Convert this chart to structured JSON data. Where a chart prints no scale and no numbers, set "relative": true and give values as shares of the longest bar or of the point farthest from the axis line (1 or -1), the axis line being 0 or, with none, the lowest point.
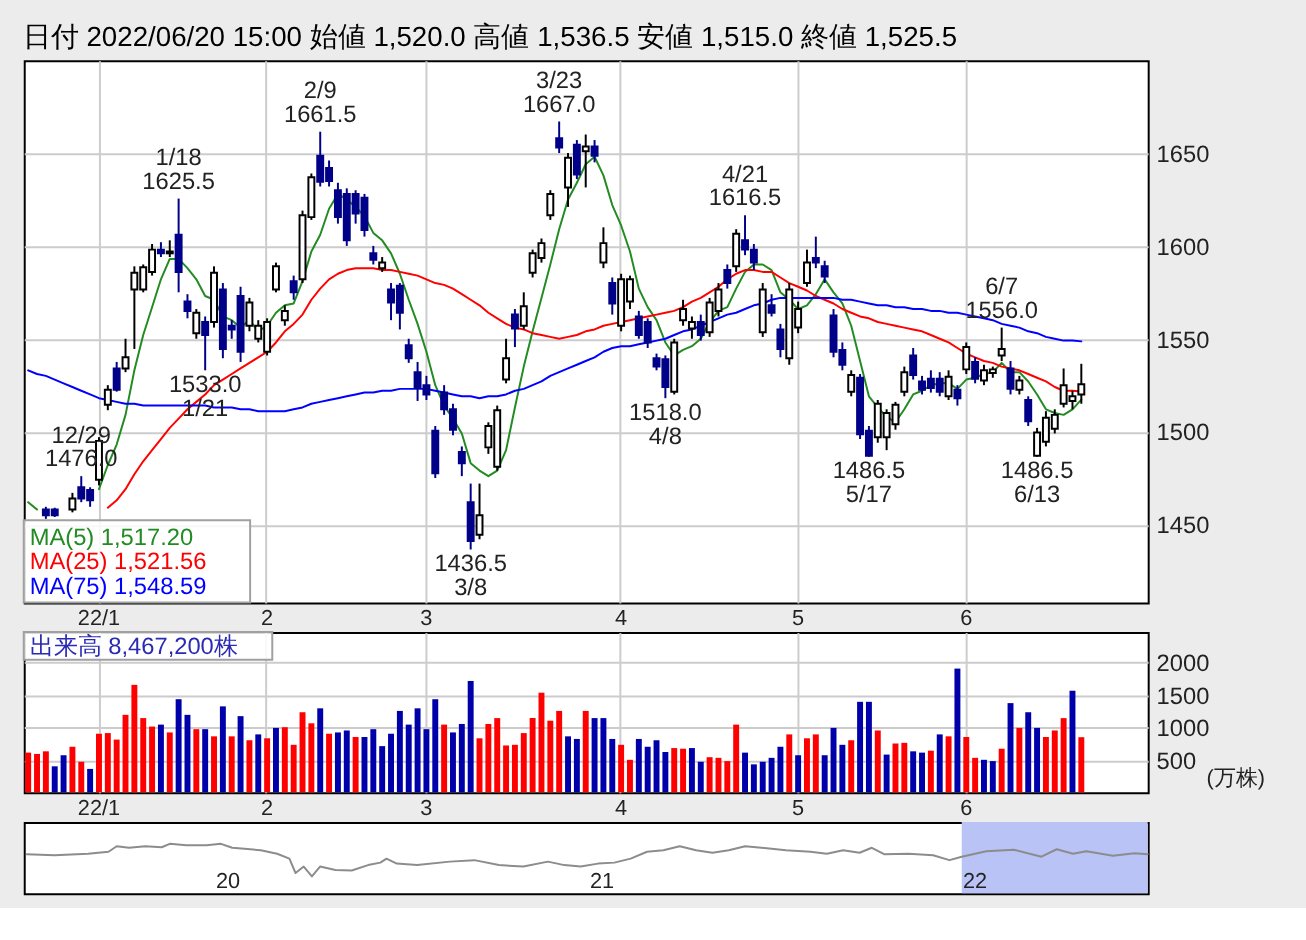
{
  "chart_data": [
    {
      "type": "candlestick",
      "title": "日付 2022/06/20 15:00 始値 1,520.0 高値 1,536.5 安値 1,515.0 終値 1,525.5",
      "categories": [
        null,
        null,
        null,
        null,
        null,
        null,
        null,
        null,
        "22/1",
        null,
        null,
        null,
        null,
        null,
        null,
        null,
        null,
        null,
        null,
        null,
        null,
        null,
        null,
        null,
        null,
        null,
        null,
        "2",
        null,
        null,
        null,
        null,
        null,
        null,
        null,
        null,
        null,
        null,
        null,
        null,
        null,
        null,
        null,
        null,
        null,
        "3",
        null,
        null,
        null,
        null,
        null,
        null,
        null,
        null,
        null,
        null,
        null,
        null,
        null,
        null,
        null,
        null,
        null,
        null,
        null,
        null,
        null,
        "4",
        null,
        null,
        null,
        null,
        null,
        null,
        null,
        null,
        null,
        null,
        null,
        null,
        null,
        null,
        null,
        null,
        null,
        null,
        null,
        "5",
        null,
        null,
        null,
        null,
        null,
        null,
        null,
        null,
        null,
        null,
        null,
        null,
        null,
        null,
        null,
        null,
        null,
        null,
        "6",
        null,
        null,
        null,
        null,
        null,
        null,
        null,
        null,
        null,
        null,
        null,
        null,
        null,
        null,
        null,
        null,
        null,
        null,
        null,
        null
      ],
      "ohlc": [
        null,
        null,
        [
          1458,
          1459.5,
          1453,
          1455
        ],
        [
          1458,
          1459,
          1454,
          1455
        ],
        null,
        [
          1458,
          1467,
          1456.5,
          1464
        ],
        [
          1470,
          1476,
          1462,
          1464
        ],
        [
          1468.5,
          1470,
          1459.5,
          1463
        ],
        [
          1474,
          1497,
          1471,
          1495
        ],
        [
          1514.5,
          1525,
          1511.5,
          1522.5
        ],
        [
          1534,
          1537.5,
          1521.5,
          1522.5
        ],
        [
          1534,
          1550,
          1532,
          1540
        ],
        [
          1576.5,
          1589,
          1544.5,
          1585.5
        ],
        [
          1576.5,
          1590,
          1575,
          1588.5
        ],
        [
          1586,
          1601,
          1584,
          1598
        ],
        [
          1598,
          1602,
          1594,
          1596
        ],
        [
          1596,
          1603,
          1594,
          1597
        ],
        [
          1606,
          1625.5,
          1575,
          1586
        ],
        [
          1570,
          1574,
          1561,
          1565
        ],
        [
          1553,
          1566,
          1550,
          1564
        ],
        [
          1559,
          1562,
          1533,
          1552
        ],
        [
          1559,
          1589,
          1556,
          1585.5
        ],
        [
          1576.5,
          1580,
          1539.5,
          1544.5
        ],
        [
          1557,
          1560,
          1550,
          1555
        ],
        [
          1573,
          1578,
          1537.5,
          1543
        ],
        [
          1557,
          1572,
          1554,
          1569.5
        ],
        [
          1550,
          1560,
          1548,
          1557
        ],
        [
          1543,
          1561,
          1541,
          1559
        ],
        [
          1576.5,
          1591,
          1575,
          1589
        ],
        [
          1560,
          1568,
          1557,
          1565
        ],
        [
          1581,
          1584,
          1571,
          1575
        ],
        [
          1582,
          1619,
          1580,
          1616.5
        ],
        [
          1615.5,
          1639,
          1614,
          1637
        ],
        [
          1648.5,
          1661.5,
          1632,
          1634.5
        ],
        [
          1642,
          1646,
          1632,
          1635
        ],
        [
          1630,
          1634,
          1612,
          1615.5
        ],
        [
          1628,
          1631,
          1600,
          1603
        ],
        [
          1628,
          1630,
          1612,
          1617.5
        ],
        [
          1626,
          1628,
          1605,
          1608.5
        ],
        [
          1596,
          1600,
          1590,
          1592.5
        ],
        [
          1588,
          1594,
          1586,
          1591
        ],
        [
          1576.5,
          1580,
          1560,
          1569.5
        ],
        [
          1578.5,
          1580,
          1555,
          1564
        ],
        [
          1546.5,
          1550,
          1537,
          1539.5
        ],
        [
          1532,
          1537.5,
          1516.5,
          1523.5
        ],
        [
          1525,
          1530,
          1517,
          1520
        ],
        [
          1500.5,
          1503,
          1475,
          1477.5
        ],
        [
          1521,
          1525,
          1509,
          1512
        ],
        [
          1512,
          1515,
          1498,
          1501
        ],
        [
          1489,
          1492,
          1476,
          1483
        ],
        [
          1462,
          1472,
          1436.5,
          1441
        ],
        [
          1444.5,
          1472,
          1442,
          1455
        ],
        [
          1491.5,
          1505,
          1488,
          1503
        ],
        [
          1481,
          1514,
          1479,
          1511.5
        ],
        [
          1528,
          1550,
          1526,
          1539.5
        ],
        [
          1563,
          1566,
          1545.5,
          1555.5
        ],
        [
          1557,
          1575,
          1555,
          1567.5
        ],
        [
          1585.5,
          1598,
          1583,
          1596
        ],
        [
          1593.5,
          1604,
          1591,
          1601.5
        ],
        [
          1616.5,
          1630,
          1614,
          1628
        ],
        [
          1658,
          1667,
          1650,
          1653
        ],
        [
          1631.5,
          1650,
          1621,
          1647.5
        ],
        [
          1654.5,
          1657,
          1636,
          1638.5
        ],
        [
          1651,
          1660,
          1631.5,
          1653.5
        ],
        [
          1653.5,
          1657,
          1645,
          1648.5
        ],
        [
          1591,
          1610,
          1588,
          1601.5
        ],
        [
          1580,
          1583,
          1563,
          1569
        ],
        [
          1557,
          1585,
          1554,
          1582
        ],
        [
          1570,
          1584,
          1566,
          1582
        ],
        [
          1562,
          1565,
          1550,
          1552
        ],
        [
          1559,
          1561,
          1545,
          1548
        ],
        [
          1539.5,
          1542,
          1533,
          1535
        ],
        [
          1539,
          1541,
          1518,
          1524
        ],
        [
          1521.5,
          1550,
          1520,
          1548
        ],
        [
          1560,
          1571,
          1557,
          1566
        ],
        [
          1555.5,
          1562,
          1550,
          1559
        ],
        [
          1559,
          1563,
          1549,
          1552
        ],
        [
          1553.5,
          1572,
          1551,
          1569.5
        ],
        [
          1565,
          1580,
          1562,
          1576.5
        ],
        [
          1587,
          1590,
          1577,
          1580
        ],
        [
          1589,
          1609,
          1586,
          1606.5
        ],
        [
          1603,
          1616.5,
          1595,
          1598
        ],
        [
          1598,
          1601,
          1587,
          1591
        ],
        [
          1553.5,
          1580,
          1551,
          1576.5
        ],
        [
          1568,
          1574,
          1562,
          1564
        ],
        [
          1555,
          1558,
          1540,
          1544.5
        ],
        [
          1539.5,
          1580,
          1536,
          1576.5
        ],
        [
          1556,
          1570,
          1553,
          1566
        ],
        [
          1580,
          1598,
          1578,
          1591
        ],
        [
          1593.5,
          1605,
          1588,
          1591
        ],
        [
          1589,
          1592,
          1580,
          1583.5
        ],
        [
          1562.5,
          1566,
          1540,
          1543
        ],
        [
          1544,
          1548,
          1533,
          1536
        ],
        [
          1521.5,
          1533,
          1519,
          1530.5
        ],
        [
          1529,
          1531,
          1496,
          1498.5
        ],
        [
          1500.5,
          1503,
          1486.5,
          1487
        ],
        [
          1497,
          1517,
          1494,
          1515
        ],
        [
          1497,
          1512,
          1490,
          1510
        ],
        [
          1504,
          1516,
          1501,
          1514.5
        ],
        [
          1521.5,
          1535,
          1519,
          1532
        ],
        [
          1541,
          1545,
          1528,
          1530.5
        ],
        [
          1527,
          1530,
          1520,
          1522.5
        ],
        [
          1528.5,
          1533,
          1521,
          1523.5
        ],
        [
          1528.5,
          1532,
          1519,
          1521.5
        ],
        [
          1519,
          1533,
          1517,
          1529.5
        ],
        [
          1522.5,
          1525,
          1514,
          1518
        ],
        [
          1533.5,
          1548,
          1531,
          1545.5
        ],
        [
          1537.5,
          1540,
          1526,
          1528.5
        ],
        [
          1527.5,
          1536,
          1525,
          1533
        ],
        [
          1531.5,
          1535,
          1529,
          1533.5
        ],
        [
          1541,
          1556,
          1538,
          1544.5
        ],
        [
          1534,
          1538,
          1520,
          1523
        ],
        [
          1522.5,
          1530,
          1520,
          1527.5
        ],
        [
          1517,
          1519,
          1503,
          1505.5
        ],
        [
          1487,
          1502,
          1486.5,
          1499.5
        ],
        [
          1494.5,
          1511,
          1492,
          1507.5
        ],
        [
          1501.5,
          1512,
          1499,
          1509
        ],
        [
          1515,
          1534,
          1513,
          1525
        ],
        [
          1516.5,
          1522,
          1512,
          1519
        ],
        [
          1520.0,
          1536.5,
          1515.0,
          1525.5
        ],
        null,
        null,
        null,
        null,
        null,
        null,
        null
      ],
      "colors": [
        null,
        null,
        "#000088",
        "#000088",
        null,
        "#ffffff",
        "#000088",
        "#000088",
        "#ffffff",
        "#ffffff",
        "#000088",
        "#ffffff",
        "#ffffff",
        "#ffffff",
        "#ffffff",
        "#000088",
        "#ffffff",
        "#000088",
        "#000088",
        "#ffffff",
        "#000088",
        "#ffffff",
        "#000088",
        "#000088",
        "#000088",
        "#ffffff",
        "#ffffff",
        "#ffffff",
        "#ffffff",
        "#ffffff",
        "#000088",
        "#ffffff",
        "#ffffff",
        "#000088",
        "#000088",
        "#000088",
        "#000088",
        "#000088",
        "#000088",
        "#000088",
        "#ffffff",
        "#000088",
        "#000088",
        "#000088",
        "#000088",
        "#000088",
        "#000088",
        "#000088",
        "#000088",
        "#000088",
        "#000088",
        "#ffffff",
        "#ffffff",
        "#ffffff",
        "#ffffff",
        "#000088",
        "#ffffff",
        "#ffffff",
        "#ffffff",
        "#ffffff",
        "#000088",
        "#ffffff",
        "#000088",
        "#ffffff",
        "#000088",
        "#ffffff",
        "#000088",
        "#ffffff",
        "#ffffff",
        "#000088",
        "#000088",
        "#000088",
        "#000088",
        "#ffffff",
        "#ffffff",
        "#ffffff",
        "#000088",
        "#ffffff",
        "#ffffff",
        "#000088",
        "#ffffff",
        "#000088",
        "#000088",
        "#ffffff",
        "#000088",
        "#000088",
        "#ffffff",
        "#ffffff",
        "#ffffff",
        "#000088",
        "#000088",
        "#000088",
        "#000088",
        "#ffffff",
        "#000088",
        "#000088",
        "#ffffff",
        "#ffffff",
        "#ffffff",
        "#ffffff",
        "#000088",
        "#000088",
        "#000088",
        "#000088",
        "#ffffff",
        "#000088",
        "#ffffff",
        "#000088",
        "#ffffff",
        "#ffffff",
        "#ffffff",
        "#000088",
        "#ffffff",
        "#000088",
        "#ffffff",
        "#ffffff",
        "#ffffff",
        "#ffffff",
        "#ffffff",
        "#ffffff",
        null,
        null,
        null,
        null,
        null,
        null,
        null
      ],
      "series": [
        {
          "name": "MA(5) 1,517.20",
          "type": "line",
          "color": "#228b22",
          "values": [
            1462,
            1458,
            null,
            null,
            null,
            null,
            null,
            null,
            1469,
            1482,
            1493,
            1509,
            1533,
            1552,
            1567,
            1582,
            1593,
            1593,
            1588,
            1582,
            1573,
            1571,
            1562,
            1560,
            1556,
            1560,
            1554,
            1557,
            1564,
            1568,
            1569,
            1581,
            1597,
            1606,
            1620,
            1628,
            1625,
            1621,
            1616,
            1607,
            1603,
            1596,
            1585,
            1571,
            1558,
            1543,
            1525,
            1514,
            1507,
            1499,
            1483,
            1479,
            1476,
            1479,
            1490,
            1513,
            1535,
            1554,
            1572,
            1590,
            1609,
            1625,
            1634,
            1644,
            1648,
            1638,
            1622,
            1611,
            1597,
            1577,
            1567,
            1560,
            1548,
            1541,
            1544,
            1546,
            1550,
            1559,
            1565,
            1567,
            1577,
            1586,
            1590,
            1590,
            1587,
            1575,
            1571,
            1566,
            1568,
            1574,
            1582,
            1575,
            1569,
            1557,
            1538,
            1519,
            1513,
            1508,
            1505,
            1512,
            1520,
            1522,
            1525,
            1526,
            1526,
            1523,
            1528,
            1529,
            1531,
            1532,
            1537,
            1532,
            1532,
            1527,
            1520,
            1512,
            1510,
            1509,
            1512,
            1517.2,
            null,
            null,
            null,
            null,
            null,
            null,
            null
          ]
        },
        {
          "name": "MA(25) 1,521.56",
          "type": "line",
          "color": "#ff0000",
          "values": [
            null,
            null,
            null,
            null,
            null,
            null,
            null,
            null,
            null,
            1459,
            1463,
            1469,
            1477,
            1484,
            1490,
            1496,
            1502,
            1507,
            1512,
            1516,
            1520,
            1525,
            1528,
            1531,
            1534,
            1537,
            1540,
            1543,
            1548,
            1554,
            1558,
            1563,
            1571,
            1577,
            1582,
            1585,
            1587,
            1588,
            1588,
            1588,
            1587,
            1587,
            1586,
            1585,
            1584,
            1582,
            1580,
            1579,
            1577,
            1574,
            1571,
            1568,
            1564,
            1561,
            1558,
            1556,
            1555,
            1553,
            1552,
            1551,
            1550,
            1551,
            1552,
            1554,
            1555,
            1557,
            1558,
            1559,
            1560,
            1561,
            1562,
            1563,
            1564,
            1565,
            1567,
            1570,
            1572,
            1575,
            1578,
            1582,
            1585,
            1587,
            1587,
            1586,
            1586,
            1583,
            1580,
            1578,
            1576,
            1573,
            1571,
            1569,
            1566,
            1564,
            1562,
            1561,
            1559,
            1558,
            1557,
            1556,
            1555,
            1554,
            1552,
            1550,
            1548,
            1545,
            1542,
            1540,
            1538,
            1537,
            1535,
            1534,
            1533,
            1531,
            1529,
            1527,
            1524,
            1522,
            1522,
            1521.56,
            null,
            null,
            null,
            null,
            null,
            null,
            null
          ]
        },
        {
          "name": "MA(75) 1,548.59",
          "type": "line",
          "color": "#0000ff",
          "values": [
            1533,
            1531,
            1530,
            1528,
            1526,
            1524,
            1522,
            1520,
            1518,
            1517,
            1516,
            1515,
            1515,
            1514,
            1514,
            1514,
            1514,
            1514,
            1514,
            1514,
            1514,
            1513,
            1513,
            1513,
            1512,
            1512,
            1511,
            1511,
            1511,
            1511,
            1512,
            1513,
            1515,
            1516,
            1517,
            1518,
            1519,
            1520,
            1521,
            1521,
            1522,
            1522,
            1523,
            1523,
            1523,
            1523,
            1522,
            1521,
            1520,
            1519,
            1519,
            1518,
            1519,
            1519,
            1520,
            1522,
            1523,
            1525,
            1527,
            1530,
            1532,
            1534,
            1536,
            1538,
            1540,
            1543,
            1545,
            1546,
            1546,
            1547,
            1548,
            1549,
            1550,
            1552,
            1554,
            1555,
            1557,
            1559,
            1561,
            1563,
            1564,
            1566,
            1568,
            1569,
            1571,
            1572,
            1572,
            1572,
            1572,
            1572,
            1572,
            1572,
            1571,
            1571,
            1570,
            1569,
            1568,
            1568,
            1567,
            1567,
            1566,
            1566,
            1565,
            1565,
            1564,
            1564,
            1563,
            1562,
            1561,
            1560,
            1558,
            1557,
            1556,
            1554,
            1553,
            1551,
            1550,
            1549,
            1549,
            1548.59,
            null,
            null,
            null,
            null,
            null,
            null,
            null
          ]
        }
      ],
      "ylim": [
        1408,
        1700
      ],
      "yticks": [
        1450,
        1500,
        1550,
        1600,
        1650
      ],
      "grid": true,
      "legend": "bottom left",
      "annotations": [
        {
          "text": "12/29\n1476.0",
          "y": 1476.0
        },
        {
          "text": "1/18\n1625.5",
          "y": 1625.5
        },
        {
          "text": "1533.0\n1/21",
          "y": 1533.0
        },
        {
          "text": "2/9\n1661.5",
          "y": 1661.5
        },
        {
          "text": "1436.5\n3/8",
          "y": 1436.5
        },
        {
          "text": "3/23\n1667.0",
          "y": 1667.0
        },
        {
          "text": "1518.0\n4/8",
          "y": 1518.0
        },
        {
          "text": "4/21\n1616.5",
          "y": 1616.5
        },
        {
          "text": "1486.5\n5/17",
          "y": 1486.5
        },
        {
          "text": "6/7\n1556.0",
          "y": 1556.0
        },
        {
          "text": "1486.5\n6/13",
          "y": 1486.5
        }
      ]
    },
    {
      "type": "bar",
      "categories": [
        null,
        null,
        null,
        null,
        null,
        null,
        null,
        null,
        "22/1",
        null,
        null,
        null,
        null,
        null,
        null,
        null,
        null,
        null,
        null,
        null,
        null,
        null,
        null,
        null,
        null,
        null,
        null,
        "2",
        null,
        null,
        null,
        null,
        null,
        null,
        null,
        null,
        null,
        null,
        null,
        null,
        null,
        null,
        null,
        null,
        null,
        "3",
        null,
        null,
        null,
        null,
        null,
        null,
        null,
        null,
        null,
        null,
        null,
        null,
        null,
        null,
        null,
        null,
        null,
        null,
        null,
        null,
        null,
        "4",
        null,
        null,
        null,
        null,
        null,
        null,
        null,
        null,
        null,
        null,
        null,
        null,
        null,
        null,
        null,
        null,
        null,
        null,
        null,
        "5",
        null,
        null,
        null,
        null,
        null,
        null,
        null,
        null,
        null,
        null,
        null,
        null,
        null,
        null,
        null,
        null,
        null,
        null,
        "6",
        null,
        null,
        null,
        null,
        null,
        null,
        null,
        null,
        null,
        null,
        null,
        null,
        null,
        null,
        null,
        null,
        null,
        null,
        null,
        null
      ],
      "values": [
        610,
        590,
        630,
        400,
        570,
        700,
        470,
        360,
        900,
        910,
        810,
        1190,
        1650,
        1140,
        1010,
        1040,
        920,
        1430,
        1190,
        970,
        970,
        860,
        1320,
        860,
        1170,
        800,
        890,
        830,
        990,
        1000,
        730,
        1230,
        1060,
        1290,
        900,
        920,
        950,
        850,
        850,
        970,
        710,
        900,
        1250,
        1040,
        1290,
        970,
        1430,
        1040,
        920,
        1050,
        1710,
        830,
        1050,
        1140,
        720,
        730,
        910,
        1140,
        1530,
        1100,
        1250,
        860,
        820,
        1250,
        1140,
        1140,
        820,
        730,
        500,
        820,
        700,
        800,
        620,
        680,
        670,
        680,
        470,
        540,
        530,
        480,
        1040,
        610,
        430,
        470,
        530,
        700,
        890,
        570,
        830,
        890,
        570,
        990,
        730,
        800,
        1390,
        1390,
        950,
        580,
        750,
        760,
        630,
        610,
        640,
        890,
        860,
        1900,
        850,
        530,
        500,
        480,
        670,
        1370,
        990,
        1230,
        990,
        850,
        950,
        1140,
        1560,
        846.72,
        null,
        null,
        null,
        null,
        null,
        null,
        null
      ],
      "colors": [
        "#ff0000",
        "#ff0000",
        "#ff0000",
        "#0000aa",
        "#0000aa",
        "#ff0000",
        "#ff0000",
        "#0000aa",
        "#ff0000",
        "#ff0000",
        "#ff0000",
        "#ff0000",
        "#ff0000",
        "#ff0000",
        "#ff0000",
        "#0000aa",
        "#ff0000",
        "#0000aa",
        "#0000aa",
        "#ff0000",
        "#0000aa",
        "#ff0000",
        "#0000aa",
        "#ff0000",
        "#0000aa",
        "#ff0000",
        "#0000aa",
        "#ff0000",
        "#0000aa",
        "#ff0000",
        "#ff0000",
        "#ff0000",
        "#ff0000",
        "#0000aa",
        "#ff0000",
        "#0000aa",
        "#0000aa",
        "#ff0000",
        "#0000aa",
        "#0000aa",
        "#0000aa",
        "#0000aa",
        "#0000aa",
        "#0000aa",
        "#0000aa",
        "#0000aa",
        "#0000aa",
        "#ff0000",
        "#0000aa",
        "#0000aa",
        "#0000aa",
        "#ff0000",
        "#ff0000",
        "#ff0000",
        "#ff0000",
        "#ff0000",
        "#ff0000",
        "#ff0000",
        "#ff0000",
        "#ff0000",
        "#ff0000",
        "#0000aa",
        "#0000aa",
        "#ff0000",
        "#0000aa",
        "#0000aa",
        "#0000aa",
        "#ff0000",
        "#ff0000",
        "#0000aa",
        "#0000aa",
        "#0000aa",
        "#0000aa",
        "#ff0000",
        "#ff0000",
        "#0000aa",
        "#0000aa",
        "#ff0000",
        "#ff0000",
        "#ff0000",
        "#ff0000",
        "#0000aa",
        "#0000aa",
        "#0000aa",
        "#0000aa",
        "#0000aa",
        "#ff0000",
        "#0000aa",
        "#ff0000",
        "#ff0000",
        "#0000aa",
        "#0000aa",
        "#0000aa",
        "#ff0000",
        "#0000aa",
        "#0000aa",
        "#ff0000",
        "#0000aa",
        "#ff0000",
        "#ff0000",
        "#0000aa",
        "#0000aa",
        "#ff0000",
        "#0000aa",
        "#ff0000",
        "#0000aa",
        "#ff0000",
        "#ff0000",
        "#0000aa",
        "#0000aa",
        "#ff0000",
        "#0000aa",
        "#ff0000",
        "#0000aa",
        "#0000aa",
        "#ff0000",
        "#ff0000",
        "#ff0000",
        "#0000aa",
        "#ff0000",
        null,
        null,
        null,
        null,
        null,
        null,
        null
      ],
      "ylim": [
        0,
        2460
      ],
      "yticks": [
        500,
        1000,
        1500,
        2000
      ],
      "ylabel": "(万株)",
      "grid": true,
      "annotations": [
        "出来高 8,467,200株"
      ]
    },
    {
      "type": "line",
      "relative": true,
      "x": [
        "2019-06-19",
        "2019-07-16",
        "2019-08-18",
        "2019-09-07",
        "2019-09-15",
        "2019-09-27",
        "2019-10-13",
        "2019-10-29",
        "2019-11-06",
        "2019-11-22",
        "2019-12-12",
        "2019-12-26",
        "2020-01-06",
        "2020-01-18",
        "2020-02-03",
        "2020-02-19",
        "2020-03-02",
        "2020-03-08",
        "2020-03-16",
        "2020-03-24",
        "2020-04-01",
        "2020-04-16",
        "2020-05-02",
        "2020-05-18",
        "2020-05-30",
        "2020-06-05",
        "2020-06-15",
        "2020-07-05",
        "2020-08-06",
        "2020-08-30",
        "2020-09-23",
        "2020-10-17",
        "2020-11-10",
        "2020-11-26",
        "2020-12-12",
        "2020-12-29",
        "2021-01-14",
        "2021-01-30",
        "2021-02-15",
        "2021-03-03",
        "2021-03-19",
        "2021-04-04",
        "2021-04-20",
        "2021-05-06",
        "2021-05-22",
        "2021-06-07",
        "2021-07-01",
        "2021-07-25",
        "2021-08-10",
        "2021-08-26",
        "2021-09-11",
        "2021-09-23",
        "2021-10-05",
        "2021-10-29",
        "2021-11-22",
        "2021-12-08",
        "2021-12-20",
        "2022-01-13",
        "2022-02-09",
        "2022-03-08",
        "2022-03-23",
        "2022-04-08",
        "2022-04-21",
        "2022-05-17",
        "2022-06-07",
        "2022-06-20"
      ],
      "series": [
        {
          "color": "#8c8c8c",
          "values": [
            0.79,
            0.77,
            0.8,
            0.84,
            0.95,
            0.92,
            0.95,
            0.93,
            1,
            0.97,
            0.97,
            1,
            0.92,
            0.9,
            0.87,
            0.8,
            0.7,
            0.41,
            0.54,
            0.34,
            0.54,
            0.47,
            0.46,
            0.57,
            0.62,
            0.7,
            0.6,
            0.57,
            0.64,
            0.67,
            0.57,
            0.54,
            0.64,
            0.57,
            0.54,
            0.6,
            0.62,
            0.7,
            0.84,
            0.87,
            0.95,
            0.87,
            0.82,
            0.87,
            0.95,
            0.92,
            0.87,
            0.84,
            0.8,
            0.87,
            0.82,
            0.92,
            0.79,
            0.8,
            0.77,
            0.67,
            0.74,
            0.85,
            0.88,
            0.74,
            0.89,
            0.8,
            0.85,
            0.76,
            0.81,
            0.79
          ]
        }
      ],
      "xlim": [
        "2019-06-16",
        "2022-06-20"
      ],
      "xticks": [
        {
          "value": "2020-01-01",
          "label": "20"
        },
        {
          "value": "2021-01-01",
          "label": "21"
        },
        {
          "value": "2022-01-01",
          "label": "22"
        }
      ],
      "bands": [
        {
          "axis": "x",
          "from": "2021-12-20",
          "to": "2022-06-20",
          "color": "#b9c3f5"
        }
      ]
    }
  ]
}
